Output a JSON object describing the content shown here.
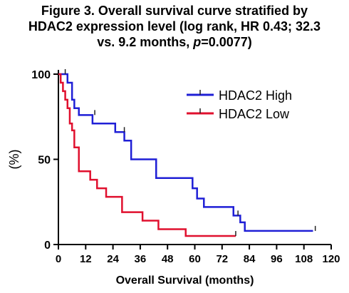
{
  "title_lines": [
    "Figure 3. Overall survival curve stratified by",
    "HDAC2 expression level (log rank, HR 0.43; 32.3",
    "vs. 9.2 months, "
  ],
  "title_p_symbol": "p",
  "title_p_value": "=0.0077)",
  "chart_data": {
    "type": "line",
    "step": true,
    "xlabel": "Overall Survival (months)",
    "ylabel": "(%)",
    "xlim": [
      0,
      120
    ],
    "ylim": [
      0,
      100
    ],
    "xticks": [
      0,
      12,
      24,
      36,
      48,
      60,
      72,
      84,
      96,
      108,
      120
    ],
    "yticks": [
      0,
      50,
      100
    ],
    "legend_position": "top-right",
    "series": [
      {
        "name": "HDAC2 High",
        "color": "#1f1fd6",
        "x": [
          0,
          4,
          6,
          7,
          9,
          15,
          25,
          29,
          32,
          43,
          59,
          61,
          64,
          77,
          80,
          82,
          112
        ],
        "y": [
          100,
          95,
          85,
          80,
          76,
          71,
          66,
          61,
          50,
          39,
          33,
          27,
          22,
          17,
          13,
          8,
          8
        ],
        "censored": [
          [
            3,
            100
          ],
          [
            16,
            76
          ],
          [
            29,
            66
          ],
          [
            79,
            17
          ],
          [
            113,
            8
          ]
        ]
      },
      {
        "name": "HDAC2 Low",
        "color": "#e0102e",
        "x": [
          0,
          1,
          2,
          3,
          4,
          5,
          6,
          7,
          9,
          14,
          17,
          21,
          28,
          37,
          44,
          56,
          78
        ],
        "y": [
          100,
          95,
          90,
          85,
          80,
          71,
          67,
          57,
          43,
          38,
          33,
          28,
          19,
          14,
          9,
          5,
          5
        ],
        "censored": [
          [
            78,
            5
          ]
        ]
      }
    ]
  }
}
